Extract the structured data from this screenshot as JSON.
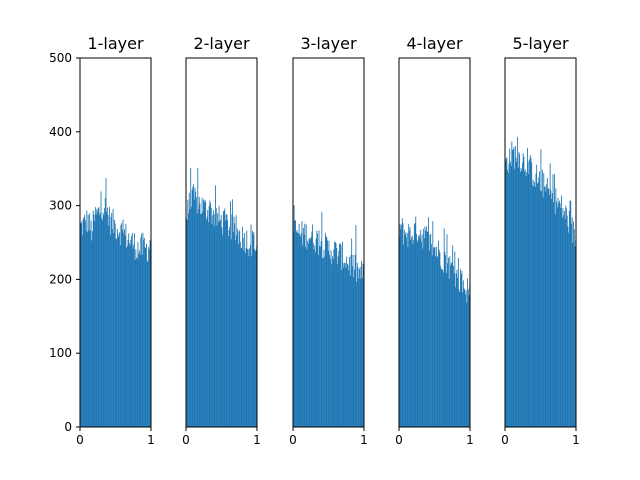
{
  "chart_data": [
    {
      "type": "histogram",
      "title": "1-layer",
      "xlim": [
        0,
        1
      ],
      "ylim": [
        0,
        500
      ],
      "xticks": [
        "0",
        "1"
      ],
      "yticks": [
        "0",
        "100",
        "200",
        "300",
        "400",
        "500"
      ],
      "color": "#1f77b4",
      "approx_counts": [
        270,
        275,
        280,
        265,
        285,
        290,
        300,
        295,
        280,
        275,
        270,
        265,
        260,
        255,
        250,
        245,
        240,
        245,
        240,
        250
      ]
    },
    {
      "type": "histogram",
      "title": "2-layer",
      "xlim": [
        0,
        1
      ],
      "ylim": [
        0,
        500
      ],
      "xticks": [
        "0",
        "1"
      ],
      "yticks": [],
      "color": "#1f77b4",
      "approx_counts": [
        285,
        300,
        310,
        305,
        300,
        295,
        295,
        290,
        285,
        280,
        278,
        275,
        270,
        265,
        262,
        258,
        255,
        250,
        248,
        245
      ]
    },
    {
      "type": "histogram",
      "title": "3-layer",
      "xlim": [
        0,
        1
      ],
      "ylim": [
        0,
        500
      ],
      "xticks": [
        "0",
        "1"
      ],
      "yticks": [],
      "color": "#1f77b4",
      "approx_counts": [
        265,
        265,
        260,
        262,
        260,
        258,
        255,
        250,
        248,
        242,
        240,
        238,
        235,
        232,
        228,
        222,
        218,
        212,
        208,
        205
      ]
    },
    {
      "type": "histogram",
      "title": "4-layer",
      "xlim": [
        0,
        1
      ],
      "ylim": [
        0,
        500
      ],
      "xticks": [
        "0",
        "1"
      ],
      "yticks": [],
      "color": "#1f77b4",
      "approx_counts": [
        270,
        265,
        262,
        260,
        265,
        268,
        262,
        258,
        250,
        245,
        240,
        235,
        228,
        222,
        215,
        208,
        200,
        195,
        188,
        182
      ]
    },
    {
      "type": "histogram",
      "title": "5-layer",
      "xlim": [
        0,
        1
      ],
      "ylim": [
        0,
        500
      ],
      "xticks": [
        "0",
        "1"
      ],
      "yticks": [],
      "color": "#1f77b4",
      "approx_counts": [
        355,
        365,
        370,
        368,
        365,
        360,
        355,
        348,
        340,
        335,
        330,
        320,
        315,
        310,
        305,
        298,
        290,
        280,
        268,
        255
      ]
    }
  ]
}
